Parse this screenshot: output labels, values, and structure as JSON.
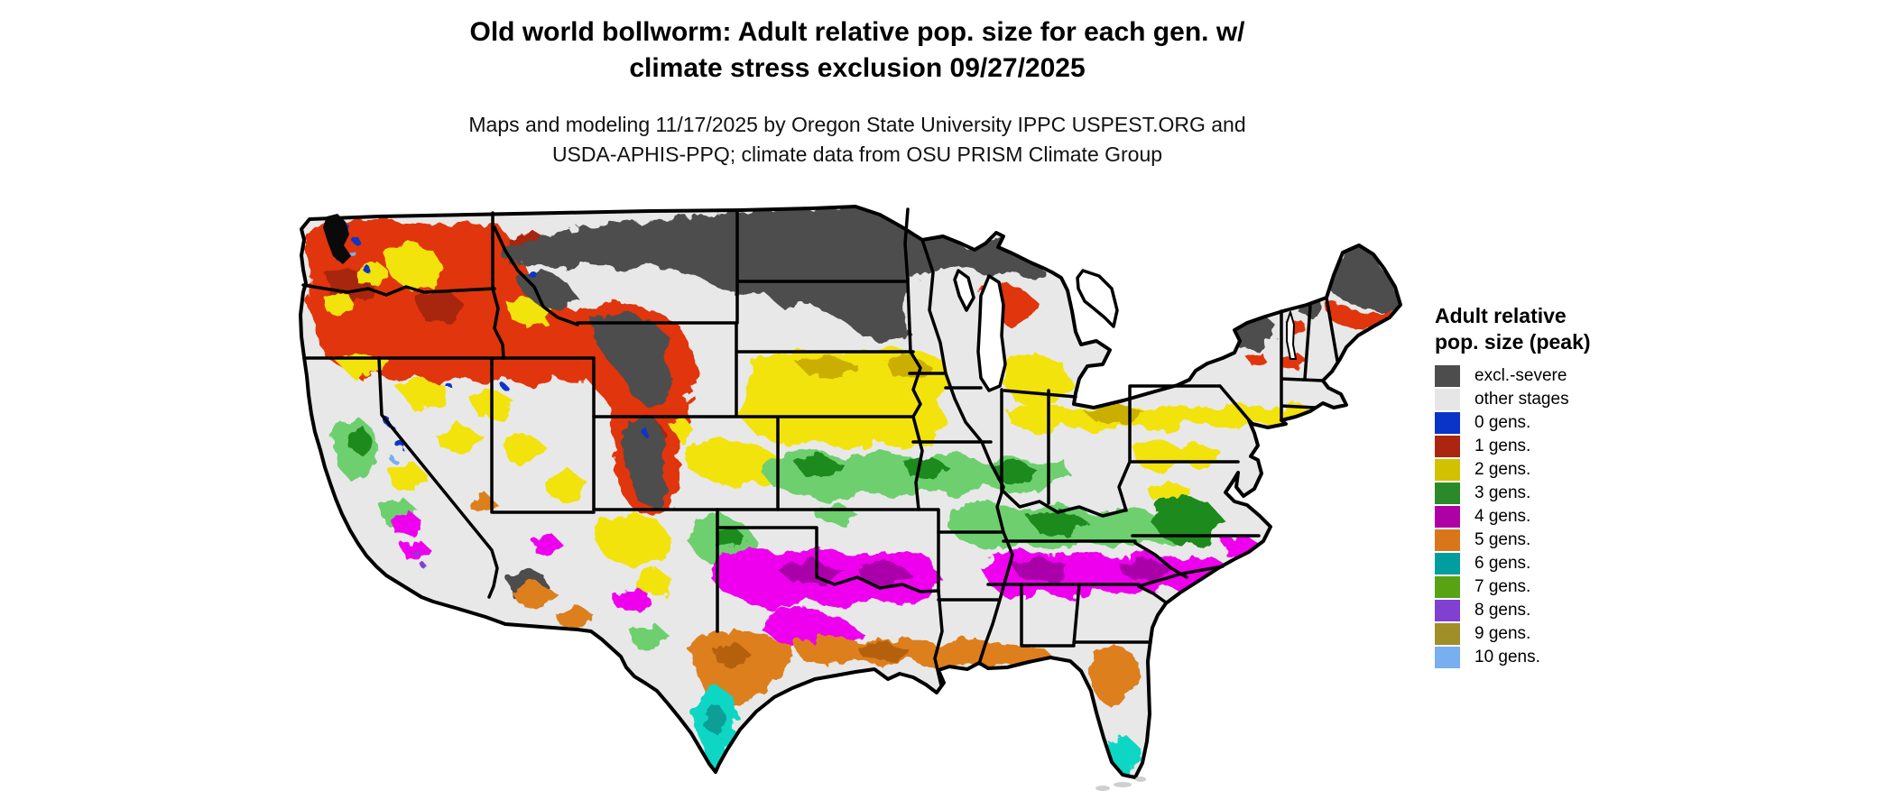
{
  "header": {
    "title_line1": "Old world bollworm: Adult relative pop. size for each gen. w/",
    "title_line2": "climate stress exclusion 09/27/2025",
    "subtitle_line1": "Maps and modeling 11/17/2025 by Oregon State University IPPC USPEST.ORG and",
    "subtitle_line2": "USDA-APHIS-PPQ; climate data from OSU PRISM Climate Group"
  },
  "legend": {
    "title": "Adult relative pop. size (peak)",
    "items": [
      {
        "label": "excl.-severe",
        "color": "#4d4d4d"
      },
      {
        "label": "other stages",
        "color": "#e6e6e6"
      },
      {
        "label": "0 gens.",
        "color": "#0a34c8"
      },
      {
        "label": "1 gens.",
        "color": "#ab2510"
      },
      {
        "label": "2 gens.",
        "color": "#d2c100"
      },
      {
        "label": "3 gens.",
        "color": "#2a8a2a"
      },
      {
        "label": "4 gens.",
        "color": "#ad00a5"
      },
      {
        "label": "5 gens.",
        "color": "#d9761a"
      },
      {
        "label": "6 gens.",
        "color": "#009e9e"
      },
      {
        "label": "7 gens.",
        "color": "#57a313"
      },
      {
        "label": "8 gens.",
        "color": "#8040d0"
      },
      {
        "label": "9 gens.",
        "color": "#a08f28"
      },
      {
        "label": "10 gens.",
        "color": "#79aef0"
      }
    ]
  },
  "map": {
    "region": "Continental United States",
    "land_color": "#e8e8e8",
    "border_color": "#000000"
  }
}
